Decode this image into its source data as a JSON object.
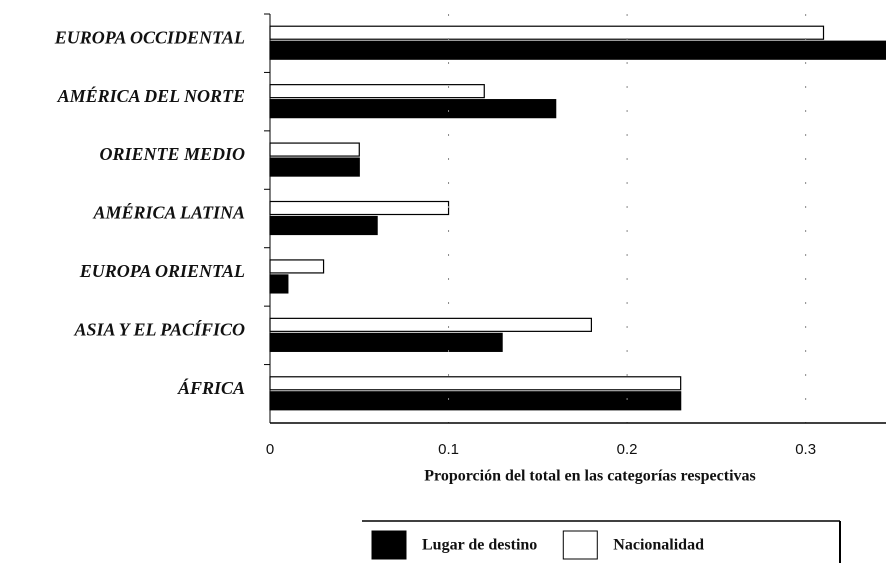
{
  "chart_data": {
    "type": "barh",
    "xlabel": "Proporción del total en las categorías respectivas",
    "categories": [
      "EUROPA OCCIDENTAL",
      "AMÉRICA DEL NORTE",
      "ORIENTE MEDIO",
      "AMÉRICA LATINA",
      "EUROPA ORIENTAL",
      "ASIA Y EL PACÍFICO",
      "ÁFRICA"
    ],
    "series": [
      {
        "name": "Nacionalidad",
        "color": "#ffffff",
        "values": [
          0.31,
          0.12,
          0.05,
          0.1,
          0.03,
          0.18,
          0.23
        ]
      },
      {
        "name": "Lugar de destino",
        "color": "#000000",
        "values": [
          0.35,
          0.16,
          0.05,
          0.06,
          0.01,
          0.13,
          0.23
        ]
      }
    ],
    "legend_order": [
      1,
      0
    ],
    "xlim": [
      0,
      0.345
    ],
    "xticks": [
      0,
      0.1,
      0.2,
      0.3
    ],
    "grid": true
  }
}
